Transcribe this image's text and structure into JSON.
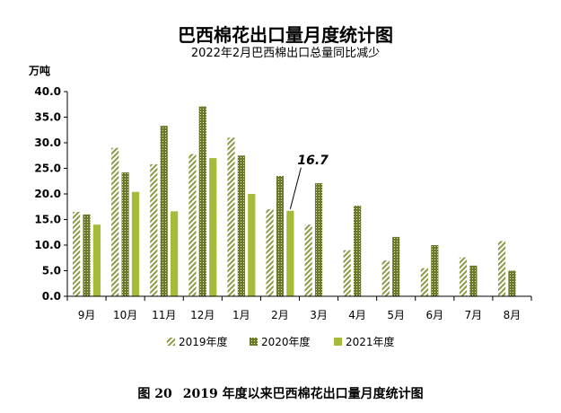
{
  "chart_data": {
    "type": "bar",
    "title": "巴西棉花出口量月度统计图",
    "subtitle": "2022年2月巴西棉出口总量同比减少",
    "ylabel": "万吨",
    "xlabel": "",
    "ylim": [
      0,
      40
    ],
    "yticks": [
      "0.0",
      "5.0",
      "10.0",
      "15.0",
      "20.0",
      "25.0",
      "30.0",
      "35.0",
      "40.0"
    ],
    "grid": false,
    "legend_position": "bottom",
    "categories": [
      "9月",
      "10月",
      "11月",
      "12月",
      "1月",
      "2月",
      "3月",
      "4月",
      "5月",
      "6月",
      "7月",
      "8月"
    ],
    "series": [
      {
        "name": "2019年度",
        "values": [
          16.5,
          29.0,
          25.8,
          27.8,
          31.0,
          17.0,
          14.0,
          9.0,
          7.0,
          5.5,
          7.6,
          10.8
        ]
      },
      {
        "name": "2020年度",
        "values": [
          16.0,
          24.2,
          33.3,
          37.1,
          27.5,
          23.5,
          22.1,
          17.7,
          11.6,
          10.0,
          6.0,
          5.0
        ]
      },
      {
        "name": "2021年度",
        "values": [
          14.0,
          20.4,
          16.6,
          27.0,
          20.0,
          16.7,
          null,
          null,
          null,
          null,
          null,
          null
        ]
      }
    ],
    "annotation": {
      "text": "16.7",
      "category": "2月",
      "series": "2021年度"
    },
    "colors": {
      "s2019": "#8b9a46",
      "s2020": "#6b7a2a",
      "s2021": "#a7bb3a"
    }
  },
  "figure_caption": {
    "label": "图 20",
    "text": "2019 年度以来巴西棉花出口量月度统计图"
  }
}
